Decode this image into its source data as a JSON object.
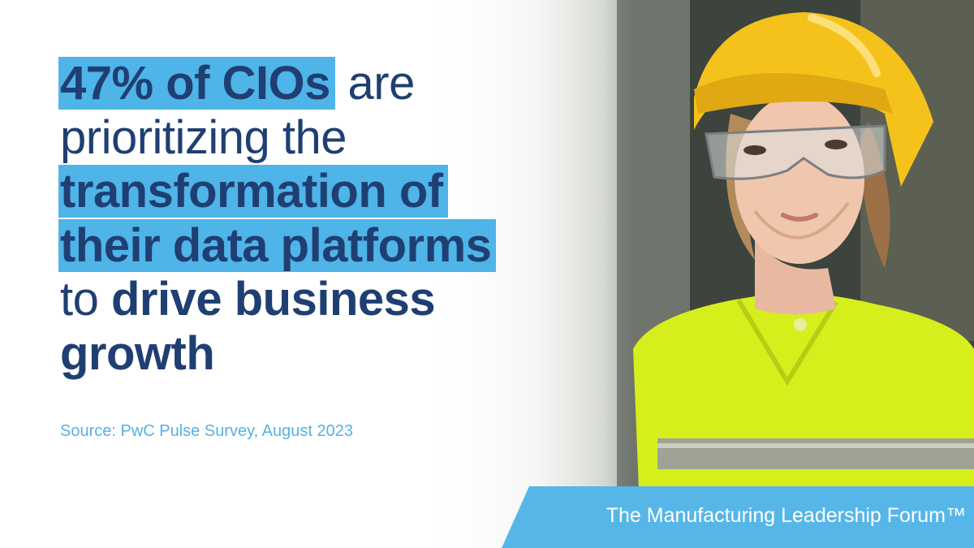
{
  "headline": {
    "line1_highlight": "47% of CIOs",
    "line1_rest": " are",
    "line2": "prioritizing the",
    "line3_highlight": "transformation of",
    "line4_highlight": "their data platforms",
    "line5_plain": "to ",
    "line5_bold": "drive business",
    "line6_bold": "growth"
  },
  "source": "Source: PwC Pulse Survey, August 2023",
  "brand": {
    "label": "The Manufacturing Leadership Forum™"
  },
  "colors": {
    "navy": "#1f3f73",
    "highlight": "#4fb4e8",
    "accent": "#56b6e8",
    "vest": "#d8f21a",
    "helmet": "#f5c21b"
  }
}
